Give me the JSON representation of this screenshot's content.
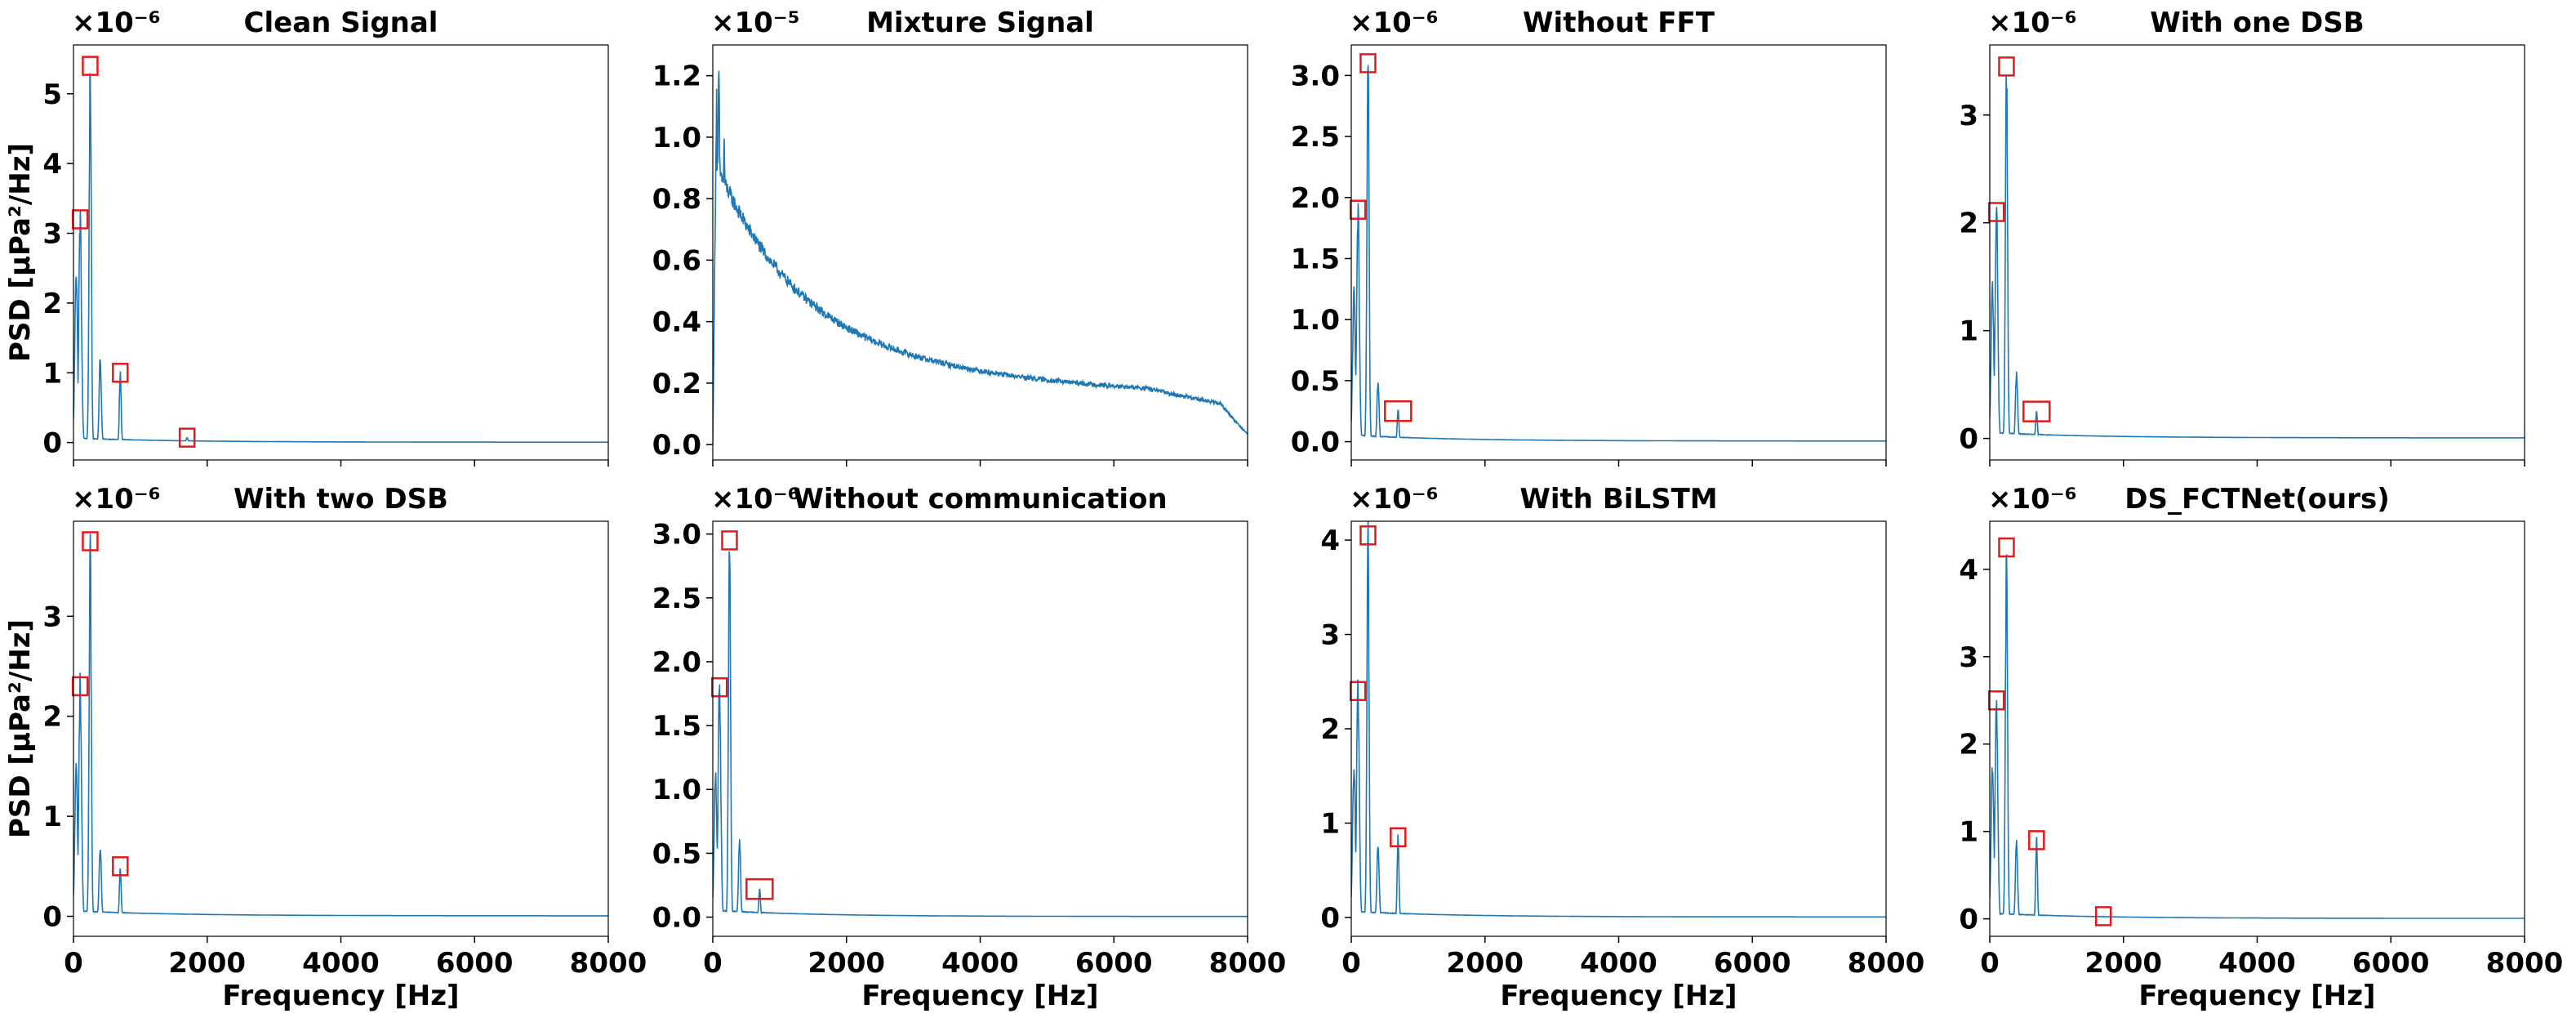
{
  "chart_data": [
    {
      "type": "line",
      "title": "Clean Signal",
      "xlabel": "Frequency [Hz]",
      "ylabel": "PSD [µPa²/Hz]",
      "multiplier": "×10⁻⁶",
      "xlim": [
        0,
        8000
      ],
      "ylim": [
        -0.25,
        5.7
      ],
      "xticks": [
        0,
        2000,
        4000,
        6000,
        8000
      ],
      "yticks": [
        0,
        1,
        2,
        3,
        4,
        5
      ],
      "yticklabels": [
        "0",
        "1",
        "2",
        "3",
        "4",
        "5"
      ],
      "peaks": [
        [
          40,
          2.5
        ],
        [
          100,
          3.2
        ],
        [
          250,
          5.4
        ],
        [
          400,
          1.2
        ],
        [
          700,
          1.0
        ],
        [
          1700,
          0.07
        ]
      ],
      "decay": 0.06,
      "highlights": [
        [
          100,
          3.2
        ],
        [
          250,
          5.4
        ],
        [
          700,
          1.0
        ],
        [
          1700,
          0.07
        ]
      ]
    },
    {
      "type": "line",
      "title": "Mixture Signal",
      "xlabel": "Frequency [Hz]",
      "ylabel": "",
      "multiplier": "×10⁻⁵",
      "xlim": [
        0,
        8000
      ],
      "ylim": [
        -0.05,
        1.3
      ],
      "xticks": [
        0,
        2000,
        4000,
        6000,
        8000
      ],
      "yticks": [
        0,
        0.2,
        0.4,
        0.6,
        0.8,
        1.0,
        1.2
      ],
      "yticklabels": [
        "0.0",
        "0.2",
        "0.4",
        "0.6",
        "0.8",
        "1.0",
        "1.2"
      ],
      "mixture": true,
      "highlights": []
    },
    {
      "type": "line",
      "title": "Without FFT",
      "xlabel": "Frequency [Hz]",
      "ylabel": "",
      "multiplier": "×10⁻⁶",
      "xlim": [
        0,
        8000
      ],
      "ylim": [
        -0.15,
        3.25
      ],
      "xticks": [
        0,
        2000,
        4000,
        6000,
        8000
      ],
      "yticks": [
        0,
        0.5,
        1.0,
        1.5,
        2.0,
        2.5,
        3.0
      ],
      "yticklabels": [
        "0.0",
        "0.5",
        "1.0",
        "1.5",
        "2.0",
        "2.5",
        "3.0"
      ],
      "peaks": [
        [
          40,
          1.2
        ],
        [
          100,
          1.9
        ],
        [
          250,
          3.1
        ],
        [
          400,
          0.5
        ],
        [
          700,
          0.25
        ]
      ],
      "decay": 0.05,
      "highlights": [
        [
          100,
          1.9
        ],
        [
          250,
          3.1
        ],
        [
          700,
          0.25
        ]
      ]
    },
    {
      "type": "line",
      "title": "With one DSB",
      "xlabel": "Frequency [Hz]",
      "ylabel": "",
      "multiplier": "×10⁻⁶",
      "xlim": [
        0,
        8000
      ],
      "ylim": [
        -0.2,
        3.65
      ],
      "xticks": [
        0,
        2000,
        4000,
        6000,
        8000
      ],
      "yticks": [
        0,
        1,
        2,
        3
      ],
      "yticklabels": [
        "0",
        "1",
        "2",
        "3"
      ],
      "peaks": [
        [
          40,
          1.4
        ],
        [
          100,
          2.1
        ],
        [
          250,
          3.45
        ],
        [
          400,
          0.6
        ],
        [
          700,
          0.25
        ]
      ],
      "decay": 0.05,
      "highlights": [
        [
          100,
          2.1
        ],
        [
          250,
          3.45
        ],
        [
          700,
          0.25
        ]
      ]
    },
    {
      "type": "line",
      "title": "With two DSB",
      "xlabel": "Frequency [Hz]",
      "ylabel": "PSD [µPa²/Hz]",
      "multiplier": "×10⁻⁶",
      "xlim": [
        0,
        8000
      ],
      "ylim": [
        -0.2,
        3.95
      ],
      "xticks": [
        0,
        2000,
        4000,
        6000,
        8000
      ],
      "yticks": [
        0,
        1,
        2,
        3
      ],
      "yticklabels": [
        "0",
        "1",
        "2",
        "3"
      ],
      "peaks": [
        [
          40,
          1.5
        ],
        [
          100,
          2.3
        ],
        [
          250,
          3.75
        ],
        [
          400,
          0.7
        ],
        [
          700,
          0.5
        ]
      ],
      "decay": 0.05,
      "highlights": [
        [
          100,
          2.3
        ],
        [
          250,
          3.75
        ],
        [
          700,
          0.5
        ]
      ]
    },
    {
      "type": "line",
      "title": "Without communication",
      "xlabel": "Frequency [Hz]",
      "ylabel": "",
      "multiplier": "×10⁻⁶",
      "xlim": [
        0,
        8000
      ],
      "ylim": [
        -0.15,
        3.1
      ],
      "xticks": [
        0,
        2000,
        4000,
        6000,
        8000
      ],
      "yticks": [
        0,
        0.5,
        1.0,
        1.5,
        2.0,
        2.5,
        3.0
      ],
      "yticklabels": [
        "0.0",
        "0.5",
        "1.0",
        "1.5",
        "2.0",
        "2.5",
        "3.0"
      ],
      "peaks": [
        [
          40,
          1.1
        ],
        [
          100,
          1.8
        ],
        [
          250,
          2.95
        ],
        [
          400,
          0.6
        ],
        [
          700,
          0.22
        ]
      ],
      "decay": 0.05,
      "highlights": [
        [
          100,
          1.8
        ],
        [
          250,
          2.95
        ],
        [
          700,
          0.22
        ]
      ]
    },
    {
      "type": "line",
      "title": "With BiLSTM",
      "xlabel": "Frequency [Hz]",
      "ylabel": "",
      "multiplier": "×10⁻⁶",
      "xlim": [
        0,
        8000
      ],
      "ylim": [
        -0.2,
        4.2
      ],
      "xticks": [
        0,
        2000,
        4000,
        6000,
        8000
      ],
      "yticks": [
        0,
        1,
        2,
        3,
        4
      ],
      "yticklabels": [
        "0",
        "1",
        "2",
        "3",
        "4"
      ],
      "peaks": [
        [
          40,
          1.6
        ],
        [
          100,
          2.4
        ],
        [
          250,
          4.05
        ],
        [
          400,
          0.8
        ],
        [
          700,
          0.85
        ]
      ],
      "decay": 0.06,
      "highlights": [
        [
          100,
          2.4
        ],
        [
          250,
          4.05
        ],
        [
          700,
          0.85
        ]
      ]
    },
    {
      "type": "line",
      "title": "DS_FCTNet(ours)",
      "xlabel": "Frequency [Hz]",
      "ylabel": "",
      "multiplier": "×10⁻⁶",
      "xlim": [
        0,
        8000
      ],
      "ylim": [
        -0.2,
        4.55
      ],
      "xticks": [
        0,
        2000,
        4000,
        6000,
        8000
      ],
      "yticks": [
        0,
        1,
        2,
        3,
        4
      ],
      "yticklabels": [
        "0",
        "1",
        "2",
        "3",
        "4"
      ],
      "peaks": [
        [
          40,
          1.7
        ],
        [
          100,
          2.5
        ],
        [
          250,
          4.25
        ],
        [
          400,
          0.9
        ],
        [
          700,
          0.9
        ],
        [
          1700,
          0.03
        ]
      ],
      "decay": 0.06,
      "highlights": [
        [
          100,
          2.5
        ],
        [
          250,
          4.25
        ],
        [
          700,
          0.9
        ],
        [
          1700,
          0.03
        ]
      ]
    }
  ]
}
